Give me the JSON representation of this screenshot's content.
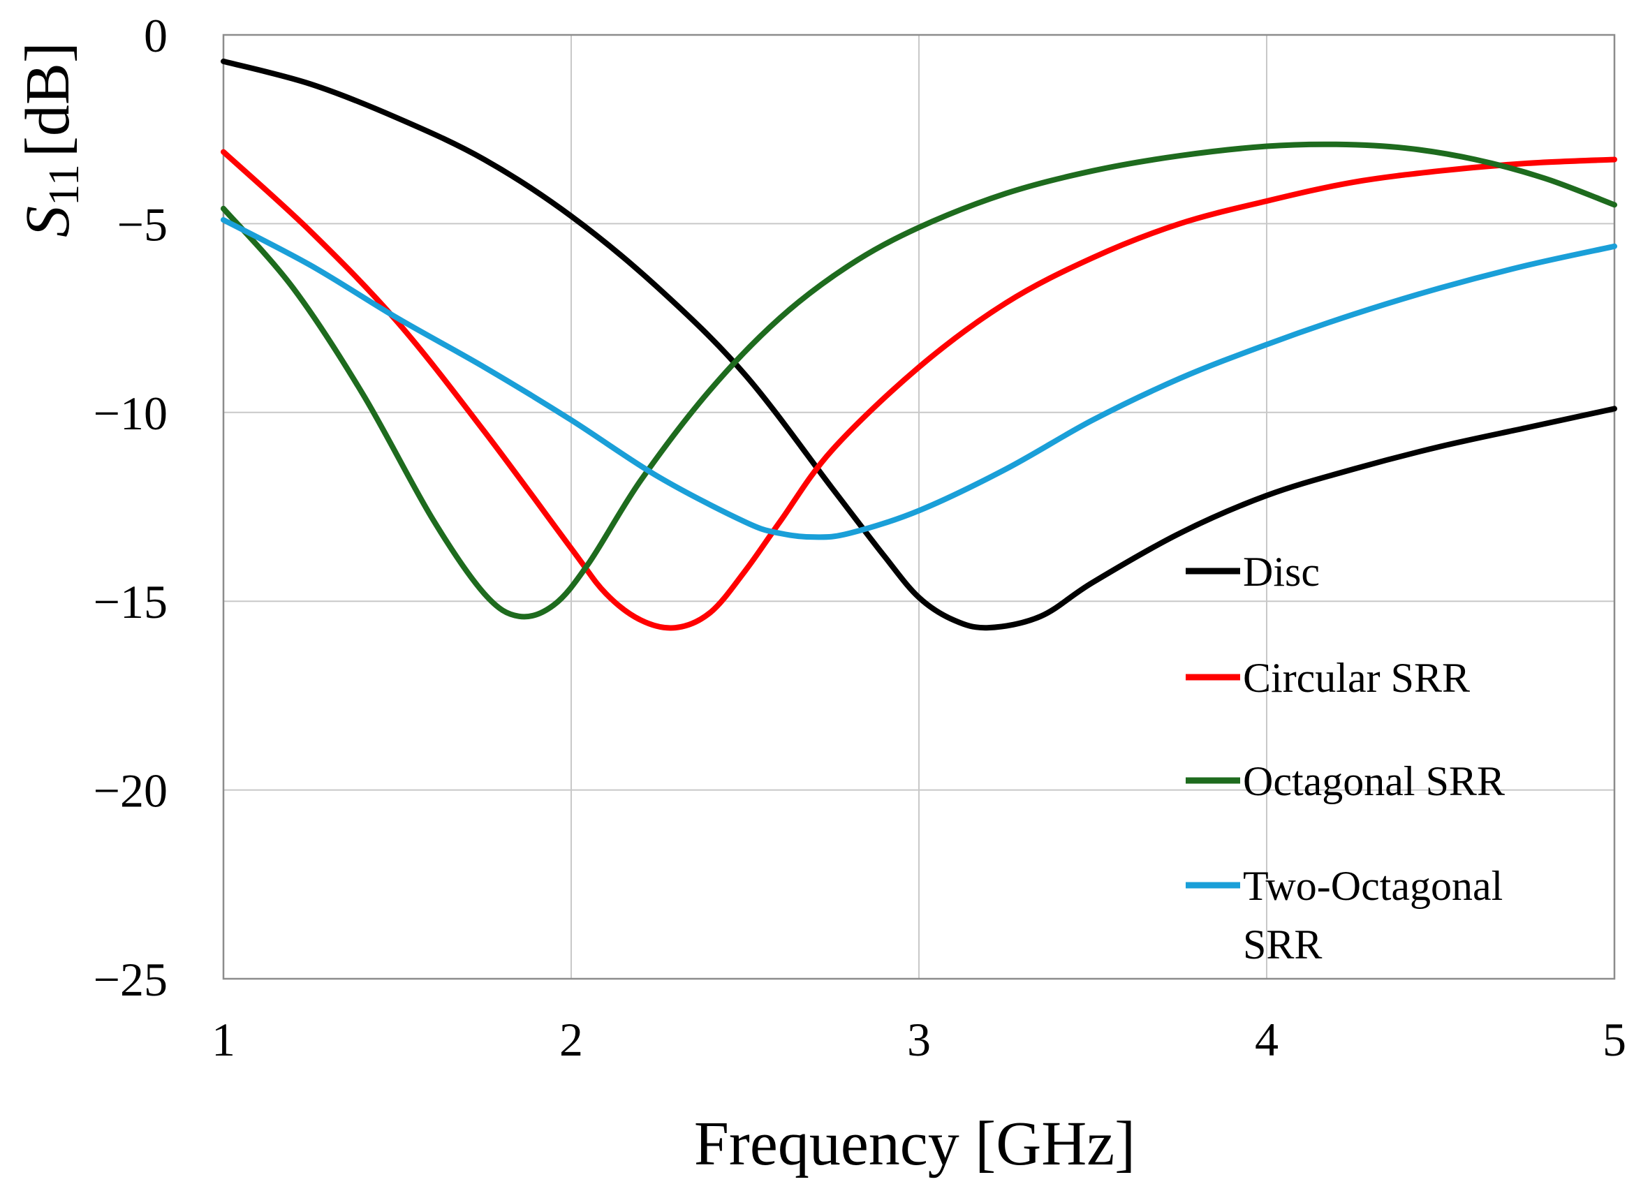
{
  "chart_data": {
    "type": "line",
    "title": "",
    "xlabel": "Frequency [GHz]",
    "ylabel": {
      "symbol": "S",
      "subscript": "11",
      "unit": "[dB]"
    },
    "xlim": [
      1,
      5
    ],
    "ylim": [
      -25,
      0
    ],
    "xticks": [
      1,
      2,
      3,
      4,
      5
    ],
    "yticks": [
      0,
      -5,
      -10,
      -15,
      -20,
      -25
    ],
    "xtick_labels": [
      "1",
      "2",
      "3",
      "4",
      "5"
    ],
    "ytick_labels": [
      "0",
      "−5",
      "−10",
      "−15",
      "−20",
      "−25"
    ],
    "grid": true,
    "legend_position": "lower-right",
    "series": [
      {
        "name": "Disc",
        "legend_lines": [
          "Disc"
        ],
        "color": "#000000",
        "x": [
          1.0,
          1.25,
          1.5,
          1.75,
          2.0,
          2.25,
          2.5,
          2.75,
          2.9,
          3.0,
          3.1,
          3.2,
          3.35,
          3.5,
          3.75,
          4.0,
          4.25,
          4.5,
          4.75,
          5.0
        ],
        "y": [
          -0.7,
          -1.3,
          -2.2,
          -3.3,
          -4.8,
          -6.7,
          -9.0,
          -12.0,
          -13.8,
          -14.9,
          -15.5,
          -15.7,
          -15.4,
          -14.5,
          -13.2,
          -12.2,
          -11.5,
          -10.9,
          -10.4,
          -9.9
        ]
      },
      {
        "name": "Circular SRR",
        "legend_lines": [
          "Circular SRR"
        ],
        "color": "#ff0000",
        "x": [
          1.0,
          1.25,
          1.5,
          1.75,
          2.0,
          2.1,
          2.2,
          2.3,
          2.4,
          2.5,
          2.6,
          2.75,
          3.0,
          3.25,
          3.5,
          3.75,
          4.0,
          4.25,
          4.5,
          4.75,
          5.0
        ],
        "y": [
          -3.1,
          -5.2,
          -7.6,
          -10.5,
          -13.6,
          -14.8,
          -15.5,
          -15.7,
          -15.3,
          -14.2,
          -12.9,
          -11.0,
          -8.8,
          -7.1,
          -5.9,
          -5.0,
          -4.4,
          -3.9,
          -3.6,
          -3.4,
          -3.3
        ]
      },
      {
        "name": "Octagonal SRR",
        "legend_lines": [
          "Octagonal SRR"
        ],
        "color": "#1e6b1e",
        "x": [
          1.0,
          1.2,
          1.4,
          1.6,
          1.75,
          1.85,
          1.95,
          2.05,
          2.2,
          2.4,
          2.6,
          2.8,
          3.0,
          3.25,
          3.5,
          3.75,
          4.0,
          4.2,
          4.4,
          4.6,
          4.8,
          5.0
        ],
        "y": [
          -4.6,
          -6.7,
          -9.5,
          -12.8,
          -14.8,
          -15.4,
          -15.1,
          -14.0,
          -11.8,
          -9.4,
          -7.5,
          -6.1,
          -5.1,
          -4.2,
          -3.6,
          -3.2,
          -2.95,
          -2.9,
          -3.0,
          -3.3,
          -3.8,
          -4.5
        ]
      },
      {
        "name": "Two-Octagonal SRR",
        "legend_lines": [
          "Two-Octagonal",
          "SRR"
        ],
        "color": "#1a9fd8",
        "x": [
          1.0,
          1.25,
          1.5,
          1.75,
          2.0,
          2.25,
          2.5,
          2.6,
          2.7,
          2.8,
          3.0,
          3.25,
          3.5,
          3.75,
          4.0,
          4.25,
          4.5,
          4.75,
          5.0
        ],
        "y": [
          -4.9,
          -6.1,
          -7.5,
          -8.8,
          -10.2,
          -11.7,
          -12.9,
          -13.2,
          -13.3,
          -13.2,
          -12.6,
          -11.5,
          -10.2,
          -9.1,
          -8.2,
          -7.4,
          -6.7,
          -6.1,
          -5.6
        ]
      }
    ]
  }
}
